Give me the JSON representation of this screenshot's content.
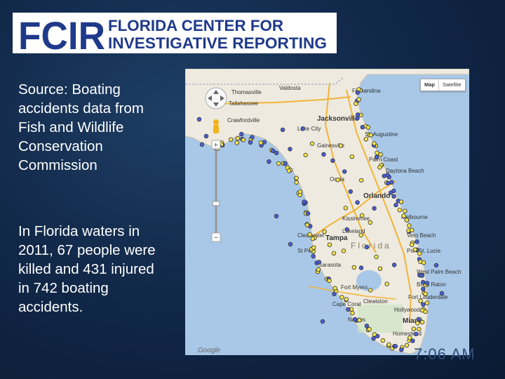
{
  "logo": {
    "acronym": "FCIR",
    "line1": "FLORIDA CENTER FOR",
    "line2": "INVESTIGATIVE REPORTING",
    "color": "#1f3a8a"
  },
  "source_text": "Source: Boating accidents data from Fish and Wildlife Conservation Commission",
  "stats_text": "In Florida waters in 2011, 67 people were killed and 431 injured in 742 boating accidents.",
  "map": {
    "type_buttons": [
      "Map",
      "Satellite"
    ],
    "attribution": "Google",
    "state_label": "Florida",
    "cities": [
      "Tallahassee",
      "Crawfordville",
      "Valdosta",
      "Thomasville",
      "Fernandina",
      "Jacksonville",
      "Lake City",
      "St. Augustine",
      "Gainesville",
      "Palm Coast",
      "Daytona Beach",
      "Ocala",
      "Orlando",
      "Kissimmee",
      "Clearwater",
      "Tampa",
      "St Pete",
      "Lakeland",
      "Sarasota",
      "Melbourne",
      "Vero Beach",
      "Port St. Lucie",
      "Fort Myers",
      "Cape Coral",
      "Naples",
      "West Palm Beach",
      "Boca Raton",
      "Fort Lauderdale",
      "Hollywood",
      "Miami",
      "Homestead",
      "Clewiston"
    ],
    "colors": {
      "water": "#a9c8e8",
      "land": "#eeeadf",
      "marker_yellow": "#f4e44a",
      "marker_blue": "#4a5fd6"
    }
  },
  "timestamp": "7:06 AM"
}
